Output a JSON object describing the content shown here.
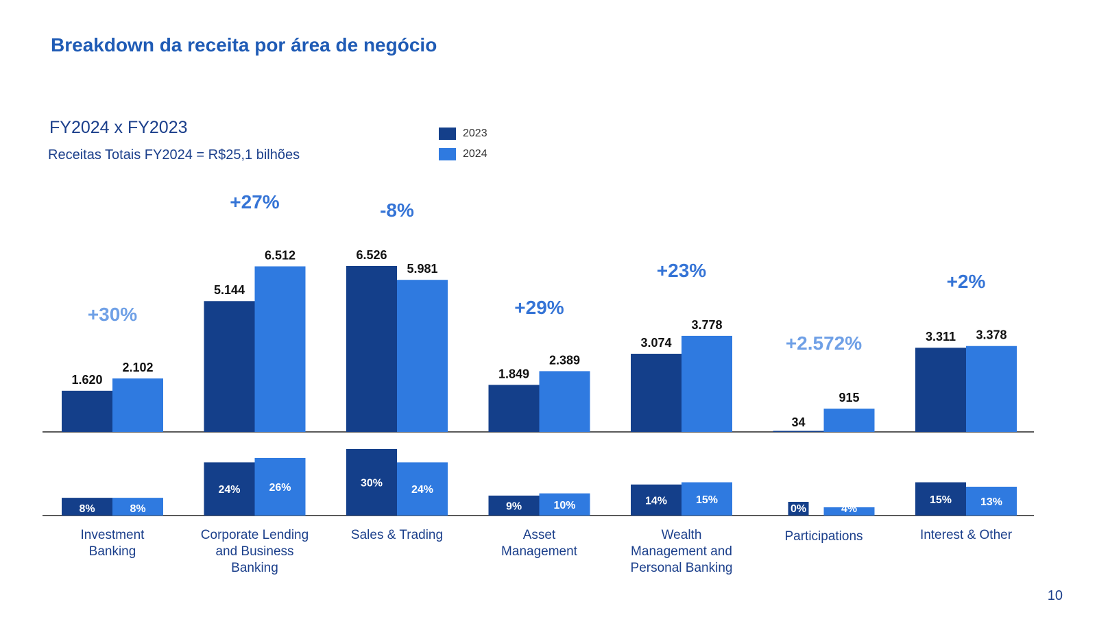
{
  "page": {
    "title": "Breakdown da receita por área de negócio",
    "subtitle": "FY2024 x FY2023",
    "total_revenue": "Receitas Totais FY2024 = R$25,1 bilhões",
    "page_number": "10"
  },
  "legend": [
    {
      "label": "2023",
      "color": "#143f8a"
    },
    {
      "label": "2024",
      "color": "#2f7ae0"
    }
  ],
  "colors": {
    "series_2023": "#143f8a",
    "series_2024": "#2f7ae0",
    "growth_dark": "#3574d6",
    "growth_light": "#6fa0e6",
    "value_label": "#111111",
    "category_label": "#1b3f8b",
    "axis": "#222222"
  },
  "chart_data": {
    "type": "bar",
    "categories": [
      "Investment\nBanking",
      "Corporate Lending\nand Business\nBanking",
      "Sales & Trading",
      "Asset\nManagement",
      "Wealth\nManagement and\nPersonal Banking",
      "Participations",
      "Interest & Other"
    ],
    "series": [
      {
        "name": "2023",
        "values": [
          1620,
          5144,
          6526,
          1849,
          3074,
          34,
          3311
        ],
        "value_labels": [
          "1.620",
          "5.144",
          "6.526",
          "1.849",
          "3.074",
          "34",
          "3.311"
        ],
        "share_labels": [
          "8%",
          "24%",
          "30%",
          "9%",
          "14%",
          "0%",
          "15%"
        ],
        "shares": [
          8,
          24,
          30,
          9,
          14,
          0,
          15
        ]
      },
      {
        "name": "2024",
        "values": [
          2102,
          6512,
          5981,
          2389,
          3778,
          915,
          3378
        ],
        "value_labels": [
          "2.102",
          "6.512",
          "5.981",
          "2.389",
          "3.778",
          "915",
          "3.378"
        ],
        "share_labels": [
          "8%",
          "26%",
          "24%",
          "10%",
          "15%",
          "4%",
          "13%"
        ],
        "shares": [
          8,
          26,
          24,
          10,
          15,
          4,
          13
        ]
      }
    ],
    "growth_labels": [
      "+30%",
      "+27%",
      "-8%",
      "+29%",
      "+23%",
      "+2.572%",
      "+2%"
    ],
    "growth_tone": [
      "light",
      "dark",
      "dark",
      "dark",
      "dark",
      "light",
      "dark"
    ],
    "ylim": [
      0,
      6526
    ],
    "share_ylim": [
      0,
      30
    ]
  }
}
